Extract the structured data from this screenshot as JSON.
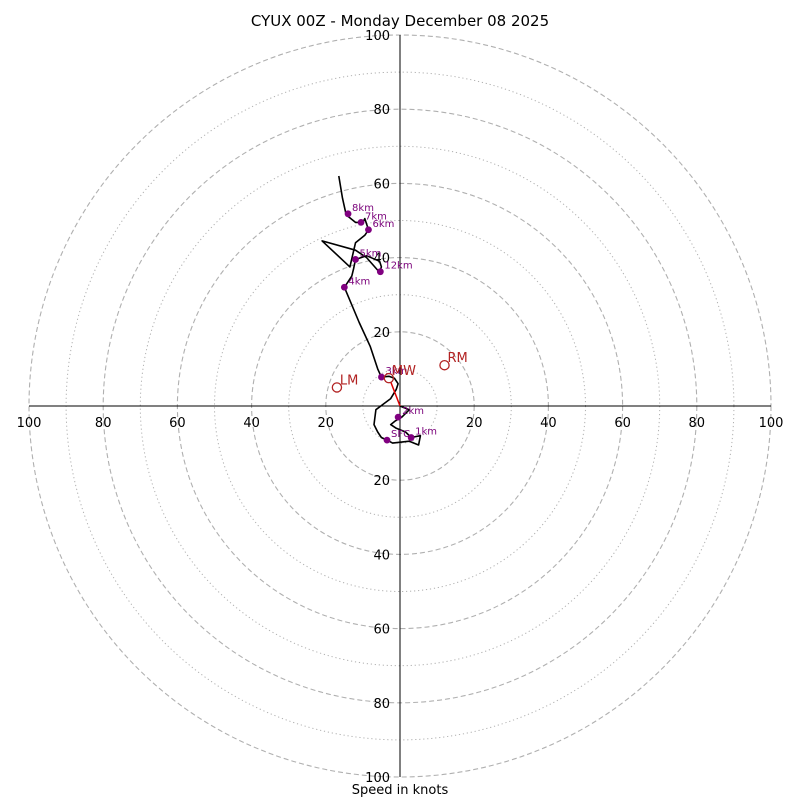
{
  "chart_data": {
    "type": "hodograph",
    "title": "CYUX 00Z - Monday December 08 2025",
    "xlabel": "Speed in knots",
    "axis_range": [
      -100,
      100
    ],
    "rings_dashed": [
      20,
      40,
      60,
      80,
      100
    ],
    "rings_dotted": [
      10,
      30,
      50,
      70,
      90
    ],
    "tick_labels": {
      "left": [
        "100",
        "80",
        "60",
        "40",
        "20"
      ],
      "right": [
        "20",
        "40",
        "60",
        "80",
        "100"
      ],
      "up": [
        "20",
        "40",
        "60",
        "80",
        "100"
      ],
      "down": [
        "20",
        "40",
        "60",
        "80",
        "100"
      ]
    },
    "wind_profile": [
      [
        0.0,
        0.0
      ],
      [
        2.5,
        -1.0
      ],
      [
        0.5,
        -3.0
      ],
      [
        -1.2,
        -4.0
      ],
      [
        -2.5,
        -5.0
      ],
      [
        -1.0,
        -6.0
      ],
      [
        1.5,
        -7.0
      ],
      [
        3.0,
        -8.5
      ],
      [
        5.5,
        -8.0
      ],
      [
        5.0,
        -10.5
      ],
      [
        2.5,
        -9.5
      ],
      [
        -2.0,
        -10.0
      ],
      [
        -3.5,
        -9.2
      ],
      [
        -5.0,
        -8.5
      ],
      [
        -6.0,
        -7.0
      ],
      [
        -7.0,
        -5.0
      ],
      [
        -6.5,
        -1.0
      ],
      [
        -4.5,
        0.5
      ],
      [
        -2.5,
        2.0
      ],
      [
        -1.0,
        4.5
      ],
      [
        -0.5,
        6.0
      ],
      [
        -1.5,
        7.5
      ],
      [
        -3.0,
        8.0
      ],
      [
        -5.0,
        7.8
      ],
      [
        -6.0,
        10.0
      ],
      [
        -8.0,
        16.0
      ],
      [
        -11.0,
        22.5
      ],
      [
        -15.0,
        32.0
      ],
      [
        -13.0,
        35.0
      ],
      [
        -12.5,
        37.0
      ],
      [
        -12.0,
        39.5
      ],
      [
        -9.0,
        40.5
      ],
      [
        -5.5,
        39.0
      ],
      [
        -5.0,
        37.5
      ],
      [
        -5.5,
        36.0
      ],
      [
        -9.0,
        40.0
      ],
      [
        -12.0,
        42.0
      ],
      [
        -21.0,
        44.5
      ],
      [
        -13.5,
        37.5
      ],
      [
        -12.0,
        44.0
      ],
      [
        -9.5,
        46.0
      ],
      [
        -8.5,
        47.5
      ],
      [
        -9.5,
        50.5
      ],
      [
        -10.0,
        49.5
      ],
      [
        -12.0,
        49.5
      ],
      [
        -14.5,
        51.5
      ],
      [
        -15.5,
        56.0
      ],
      [
        -16.5,
        62.0
      ]
    ],
    "height_markers": [
      {
        "label": "SFC",
        "u": -3.5,
        "v": -9.2
      },
      {
        "label": "1km",
        "u": 3.0,
        "v": -8.5
      },
      {
        "label": "2km",
        "u": -0.5,
        "v": -3.0
      },
      {
        "label": "3km",
        "u": -5.0,
        "v": 7.8
      },
      {
        "label": "4km",
        "u": -15.0,
        "v": 32.0
      },
      {
        "label": "5km",
        "u": -12.0,
        "v": 39.5
      },
      {
        "label": "6km",
        "u": -8.5,
        "v": 47.5
      },
      {
        "label": "7km",
        "u": -10.5,
        "v": 49.5
      },
      {
        "label": "8km",
        "u": -14.0,
        "v": 51.8
      },
      {
        "label": "12km",
        "u": -5.3,
        "v": 36.2
      }
    ],
    "shear_vector": {
      "from": [
        0.0,
        0.0
      ],
      "to": [
        -2.5,
        6.5
      ]
    },
    "storm_motion": [
      {
        "label": "RM",
        "u": 12.0,
        "v": 11.0
      },
      {
        "label": "LM",
        "u": -17.0,
        "v": 5.0
      },
      {
        "label": "MW",
        "u": -3.0,
        "v": 7.5
      }
    ],
    "colors": {
      "profile": "#000000",
      "markers": "#800080",
      "marker_labels": "#7a007a",
      "storm_motion": "#b22222",
      "shear": "#e00000",
      "grid": "#b0b0b0",
      "axes": "#000000"
    }
  }
}
